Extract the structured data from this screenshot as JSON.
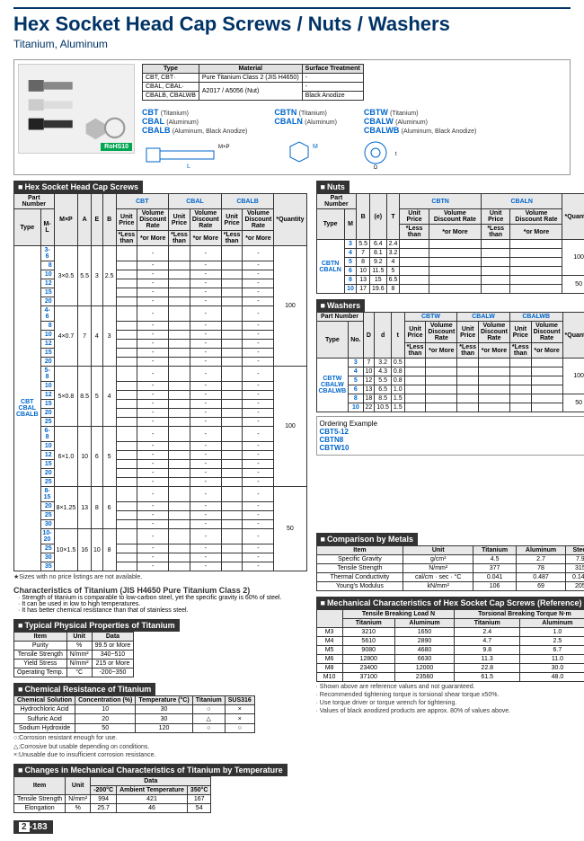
{
  "header": {
    "title": "Hex Socket Head Cap Screws / Nuts / Washers",
    "subtitle": "Titanium, Aluminum"
  },
  "type_table": {
    "headers": [
      "Type",
      "Material",
      "Surface Treatment"
    ],
    "rows": [
      [
        "CBT, CBT·",
        "Pure Titanium Class 2 (JIS H4650)",
        "-"
      ],
      [
        "CBAL, CBAL·",
        "A2017 / A5056 (Nut)",
        "-"
      ],
      [
        "CBALB, CBALWB",
        "",
        "Black Anodize"
      ]
    ]
  },
  "codes": {
    "screws": [
      {
        "code": "CBT",
        "mat": "(Titanium)"
      },
      {
        "code": "CBAL",
        "mat": "(Aluminum)"
      },
      {
        "code": "CBALB",
        "mat": "(Aluminum, Black Anodize)"
      }
    ],
    "nuts": [
      {
        "code": "CBTN",
        "mat": "(Titanium)"
      },
      {
        "code": "CBALN",
        "mat": "(Aluminum)"
      }
    ],
    "washers": [
      {
        "code": "CBTW",
        "mat": "(Titanium)"
      },
      {
        "code": "CBALW",
        "mat": "(Aluminum)"
      },
      {
        "code": "CBALWB",
        "mat": "(Aluminum, Black Anodize)"
      }
    ]
  },
  "screws": {
    "header": "Hex Socket Head Cap Screws",
    "cols": [
      "Part Number",
      "M×P",
      "A",
      "E",
      "B",
      "CBT",
      "CBAL",
      "CBALB",
      "*Quantity"
    ],
    "subcols": [
      "Type",
      "M-L"
    ],
    "types": "CBT\nCBAL\nCBALB",
    "groups": [
      {
        "ml": "3-",
        "lens": [
          "6",
          "8",
          "10",
          "12",
          "15",
          "20"
        ],
        "mxp": "3×0.5",
        "a": "5.5",
        "e": "3",
        "b": "2.5",
        "qty": "100"
      },
      {
        "ml": "4-",
        "lens": [
          "6",
          "8",
          "10",
          "12",
          "15",
          "20"
        ],
        "mxp": "4×0.7",
        "a": "7",
        "e": "4",
        "b": "3",
        "qty": ""
      },
      {
        "ml": "5-",
        "lens": [
          "8",
          "10",
          "12",
          "15",
          "20",
          "25"
        ],
        "mxp": "5×0.8",
        "a": "8.5",
        "e": "5",
        "b": "4",
        "qty": "100"
      },
      {
        "ml": "6-",
        "lens": [
          "8",
          "10",
          "12",
          "15",
          "20",
          "25"
        ],
        "mxp": "6×1.0",
        "a": "10",
        "e": "6",
        "b": "5",
        "qty": ""
      },
      {
        "ml": "8-",
        "lens": [
          "15",
          "20",
          "25",
          "30"
        ],
        "mxp": "8×1.25",
        "a": "13",
        "e": "8",
        "b": "6",
        "qty": "50"
      },
      {
        "ml": "10-",
        "lens": [
          "20",
          "25",
          "30",
          "35"
        ],
        "mxp": "10×1.5",
        "a": "16",
        "e": "10",
        "b": "8",
        "qty": ""
      }
    ],
    "note": "Sizes with no price listings are not available."
  },
  "nuts": {
    "header": "Nuts",
    "types": "CBTN\nCBALN",
    "cols": [
      "Part Number",
      "B",
      "(e)",
      "T",
      "CBTN",
      "CBALN",
      "*Quantity"
    ],
    "rows": [
      {
        "m": "3",
        "b": "5.5",
        "e": "6.4",
        "t": "2.4"
      },
      {
        "m": "4",
        "b": "7",
        "e": "8.1",
        "t": "3.2"
      },
      {
        "m": "5",
        "b": "8",
        "e": "9.2",
        "t": "4"
      },
      {
        "m": "6",
        "b": "10",
        "e": "11.5",
        "t": "5"
      },
      {
        "m": "8",
        "b": "13",
        "e": "15",
        "t": "6.5"
      },
      {
        "m": "10",
        "b": "17",
        "e": "19.6",
        "t": "8"
      }
    ],
    "qty1": "100",
    "qty2": "50"
  },
  "washers": {
    "header": "Washers",
    "types": "CBTW\nCBALW\nCBALWB",
    "cols": [
      "Part Number",
      "D",
      "d",
      "t",
      "CBTW",
      "CBALW",
      "CBALWB",
      "*Quantity"
    ],
    "rows": [
      {
        "n": "3",
        "D": "7",
        "d": "3.2",
        "t": "0.5"
      },
      {
        "n": "4",
        "D": "10",
        "d": "4.3",
        "t": "0.8"
      },
      {
        "n": "5",
        "D": "12",
        "d": "5.5",
        "t": "0.8"
      },
      {
        "n": "6",
        "D": "13",
        "d": "6.5",
        "t": "1.0"
      },
      {
        "n": "8",
        "D": "18",
        "d": "8.5",
        "t": "1.5"
      },
      {
        "n": "10",
        "D": "22",
        "d": "10.5",
        "t": "1.5"
      }
    ],
    "qty1": "100",
    "qty2": "50"
  },
  "ordering": {
    "label": "Ordering Example",
    "codes": [
      "CBT5-12",
      "CBTN8",
      "CBTW10"
    ]
  },
  "characteristics": {
    "title": "Characteristics of Titanium (JIS H4650 Pure Titanium Class 2)",
    "bullets": [
      "Strength of titanium is comparable to low-carbon steel, yet the specific gravity is 60% of steel.",
      "It can be used in low to high temperatures.",
      "It has better chemical resistance than that of stainless steel."
    ]
  },
  "physical": {
    "header": "Typical Physical Properties of Titanium",
    "rows": [
      {
        "item": "Purity",
        "unit": "%",
        "data": "99.5 or More"
      },
      {
        "item": "Tensile Strength",
        "unit": "N/mm²",
        "data": "340~510"
      },
      {
        "item": "Yield Stress",
        "unit": "N/mm²",
        "data": "215 or More"
      },
      {
        "item": "Operating Temp.",
        "unit": "°C",
        "data": "-200~350"
      }
    ]
  },
  "chemical": {
    "header": "Chemical Resistance of Titanium",
    "cols": [
      "Chemical Solution",
      "Concentration (%)",
      "Temperature (°C)",
      "Titanium",
      "SUS316"
    ],
    "rows": [
      [
        "Hydrochloric Acid",
        "10",
        "30",
        "○",
        "×"
      ],
      [
        "Sulfuric Acid",
        "20",
        "30",
        "△",
        "×"
      ],
      [
        "Sodium Hydroxide",
        "50",
        "120",
        "○",
        "○"
      ]
    ],
    "legend": [
      "○:Corrosion resistant enough for use.",
      "△:Corrosive but usable depending on conditions.",
      "×:Unusable due to insufficient corrosion resistance."
    ]
  },
  "temp_change": {
    "header": "Changes in Mechanical Characteristics of Titanium by Temperature",
    "cols": [
      "Item",
      "Unit",
      "-200°C",
      "Ambient Temperature",
      "350°C"
    ],
    "rows": [
      [
        "Tensile Strength",
        "N/mm²",
        "994",
        "421",
        "167"
      ],
      [
        "Elongation",
        "%",
        "25.7",
        "46",
        "54"
      ]
    ]
  },
  "comparison": {
    "header": "Comparison by Metals",
    "cols": [
      "Item",
      "Unit",
      "Titanium",
      "Aluminum",
      "Steel"
    ],
    "rows": [
      [
        "Specific Gravity",
        "g/cm³",
        "4.5",
        "2.7",
        "7.9"
      ],
      [
        "Tensile Strength",
        "N/mm²",
        "377",
        "78",
        "315"
      ],
      [
        "Thermal Conductivity",
        "cal/cm · sec · °C",
        "0.041",
        "0.487",
        "0.145"
      ],
      [
        "Young's Modulus",
        "kN/mm²",
        "106",
        "69",
        "205"
      ]
    ]
  },
  "mechanical": {
    "header": "Mechanical Characteristics of Hex Socket Cap Screws (Reference)",
    "cols": [
      "",
      "Tensile Breaking Load N",
      "Torsional Breaking Torque N·m"
    ],
    "subcols": [
      "Titanium",
      "Aluminum",
      "Titanium",
      "Aluminum"
    ],
    "rows": [
      [
        "M3",
        "3210",
        "1650",
        "2.4",
        "1.0"
      ],
      [
        "M4",
        "5610",
        "2890",
        "4.7",
        "2.5"
      ],
      [
        "M5",
        "9080",
        "4680",
        "9.8",
        "6.7"
      ],
      [
        "M6",
        "12800",
        "6630",
        "11.3",
        "11.0"
      ],
      [
        "M8",
        "23400",
        "12000",
        "22.8",
        "30.0"
      ],
      [
        "M10",
        "37100",
        "23560",
        "61.5",
        "48.0"
      ]
    ],
    "notes": [
      "Shown above are reference values and not guaranteed.",
      "Recommended tightening torque is torsional shear torque x50%.",
      "Use torque driver or torque wrench for tightening.",
      "Values of black anodized products are approx. 80% of values above."
    ]
  },
  "page_num": "2-183"
}
